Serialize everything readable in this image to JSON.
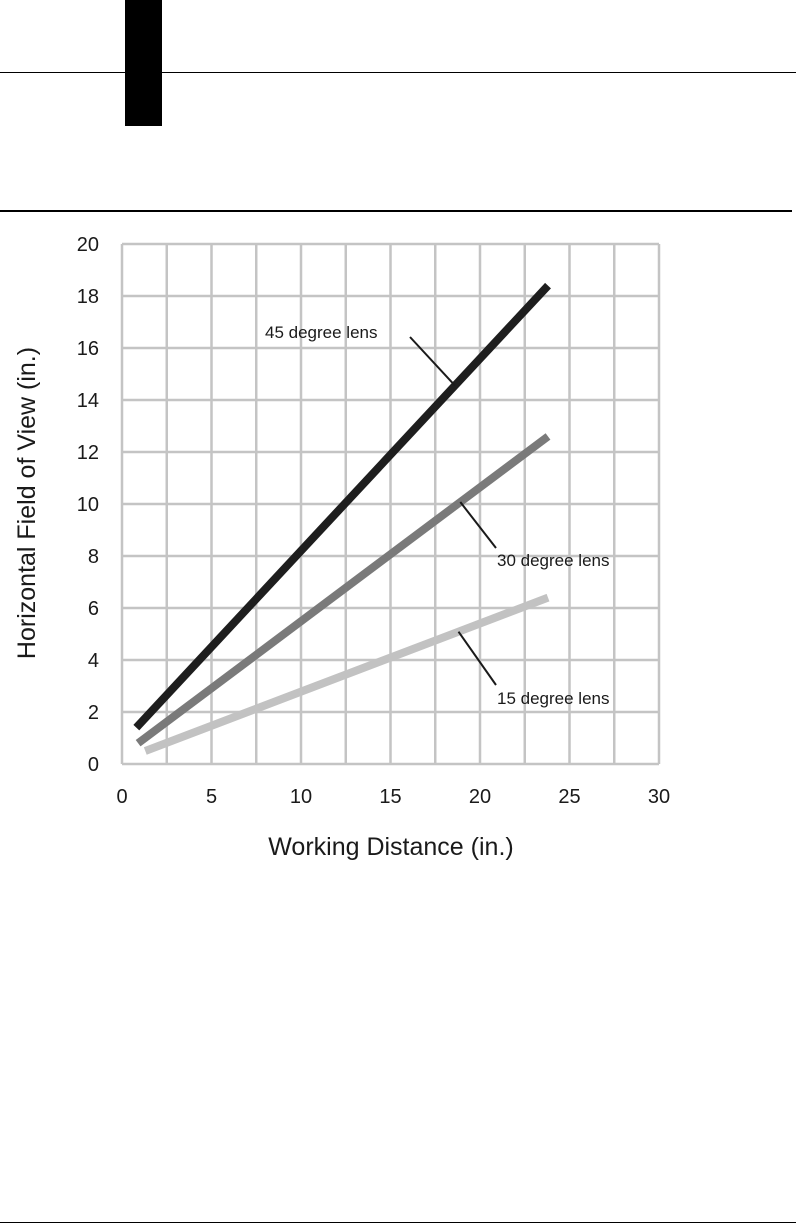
{
  "chart_data": {
    "type": "line",
    "title": "",
    "xlabel": "Working Distance (in.)",
    "ylabel": "Horizontal Field of View (in.)",
    "xlim": [
      0,
      30
    ],
    "ylim": [
      0,
      20
    ],
    "x_ticks": [
      "0",
      "5",
      "10",
      "15",
      "20",
      "25",
      "30"
    ],
    "y_ticks": [
      "0",
      "2",
      "4",
      "6",
      "8",
      "10",
      "12",
      "14",
      "16",
      "18",
      "20"
    ],
    "grid": true,
    "series": [
      {
        "name": "45 degree lens",
        "x": [
          0.8,
          23.8
        ],
        "y": [
          1.4,
          18.4
        ],
        "color": "#1e1e1e"
      },
      {
        "name": "30 degree lens",
        "x": [
          0.9,
          23.8
        ],
        "y": [
          0.8,
          12.6
        ],
        "color": "#7a7a7a"
      },
      {
        "name": "15 degree lens",
        "x": [
          1.3,
          23.8
        ],
        "y": [
          0.5,
          6.4
        ],
        "color": "#c2c2c2"
      }
    ],
    "annotations": [
      {
        "text": "45 degree lens",
        "series": 0,
        "point_x": 18.6
      },
      {
        "text": "30 degree lens",
        "series": 1,
        "point_x": 18.9
      },
      {
        "text": "15 degree lens",
        "series": 2,
        "point_x": 18.8
      }
    ]
  }
}
